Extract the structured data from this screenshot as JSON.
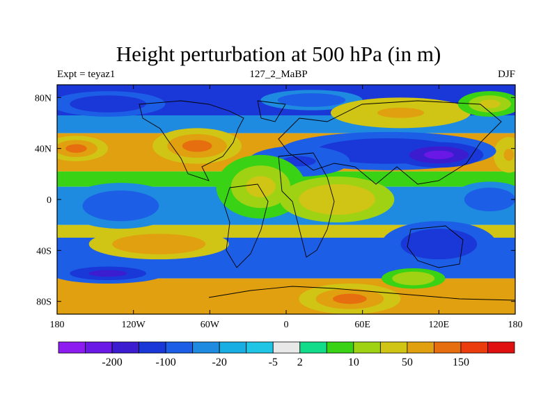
{
  "chart_data": {
    "type": "heatmap",
    "title": "Height perturbation at 500 hPa (in m)",
    "subtitle_left": "Expt = teyaz1",
    "subtitle_center": "127_2_MaBP",
    "subtitle_right": "DJF",
    "x": {
      "range": [
        -180,
        180
      ],
      "ticks": [
        -180,
        -120,
        -60,
        0,
        60,
        120,
        180
      ],
      "tick_labels": [
        "180",
        "120W",
        "60W",
        "0",
        "60E",
        "120E",
        "180"
      ]
    },
    "y": {
      "range": [
        -90,
        90
      ],
      "ticks": [
        80,
        40,
        0,
        -40,
        -80
      ],
      "tick_labels": [
        "80N",
        "40N",
        "0",
        "40S",
        "80S"
      ]
    },
    "colorbar": {
      "colors": [
        "#8c1cf0",
        "#6a18e6",
        "#3c1ccf",
        "#1a38d8",
        "#1c5ee6",
        "#1e8ae0",
        "#18aee4",
        "#20c4e4",
        "#e8e8e8",
        "#12dc8a",
        "#3ad214",
        "#a0d214",
        "#d0c414",
        "#e0a010",
        "#e66e0e",
        "#ea3c0c",
        "#e01010"
      ],
      "labels": [
        "-200",
        "-100",
        "-20",
        "-5",
        "2",
        "10",
        "50",
        "150"
      ],
      "label_after_box": [
        1,
        3,
        5,
        7,
        8,
        10,
        12,
        14
      ]
    },
    "bands": [
      {
        "lat_min": 66,
        "lat_max": 90,
        "value": -60
      },
      {
        "lat_min": 52,
        "lat_max": 66,
        "value": -20
      },
      {
        "lat_min": 22,
        "lat_max": 52,
        "value": 70
      },
      {
        "lat_min": 10,
        "lat_max": 22,
        "value": 8
      },
      {
        "lat_min": -20,
        "lat_max": 10,
        "value": -15
      },
      {
        "lat_min": -30,
        "lat_max": -20,
        "value": 20
      },
      {
        "lat_min": -62,
        "lat_max": -30,
        "value": -40
      },
      {
        "lat_min": -90,
        "lat_max": -62,
        "value": 50
      }
    ],
    "features": [
      {
        "lon": -140,
        "lat": 75,
        "value": -90,
        "rx": 45,
        "ry": 10
      },
      {
        "lon": 20,
        "lat": 78,
        "value": -30,
        "rx": 40,
        "ry": 8
      },
      {
        "lon": 90,
        "lat": 68,
        "value": 60,
        "rx": 55,
        "ry": 12
      },
      {
        "lon": 160,
        "lat": 75,
        "value": 20,
        "rx": 25,
        "ry": 10
      },
      {
        "lon": -70,
        "lat": 42,
        "value": 130,
        "rx": 35,
        "ry": 14
      },
      {
        "lon": -165,
        "lat": 40,
        "value": 110,
        "rx": 25,
        "ry": 10
      },
      {
        "lon": 175,
        "lat": 35,
        "value": 60,
        "rx": 12,
        "ry": 14
      },
      {
        "lon": 80,
        "lat": 38,
        "value": -90,
        "rx": 85,
        "ry": 15
      },
      {
        "lon": 120,
        "lat": 35,
        "value": -180,
        "rx": 35,
        "ry": 10
      },
      {
        "lon": 10,
        "lat": 30,
        "value": -60,
        "rx": 40,
        "ry": 12
      },
      {
        "lon": -20,
        "lat": 10,
        "value": 25,
        "rx": 35,
        "ry": 25
      },
      {
        "lon": 40,
        "lat": 0,
        "value": 30,
        "rx": 45,
        "ry": 18
      },
      {
        "lon": -130,
        "lat": -5,
        "value": -40,
        "rx": 45,
        "ry": 18
      },
      {
        "lon": 160,
        "lat": 0,
        "value": -30,
        "rx": 30,
        "ry": 14
      },
      {
        "lon": 120,
        "lat": -35,
        "value": -100,
        "rx": 45,
        "ry": 18
      },
      {
        "lon": -100,
        "lat": -35,
        "value": 80,
        "rx": 55,
        "ry": 12
      },
      {
        "lon": -140,
        "lat": -58,
        "value": -120,
        "rx": 45,
        "ry": 8
      },
      {
        "lon": 50,
        "lat": -78,
        "value": 130,
        "rx": 40,
        "ry": 12
      },
      {
        "lon": 100,
        "lat": -62,
        "value": 15,
        "rx": 25,
        "ry": 8
      }
    ]
  }
}
